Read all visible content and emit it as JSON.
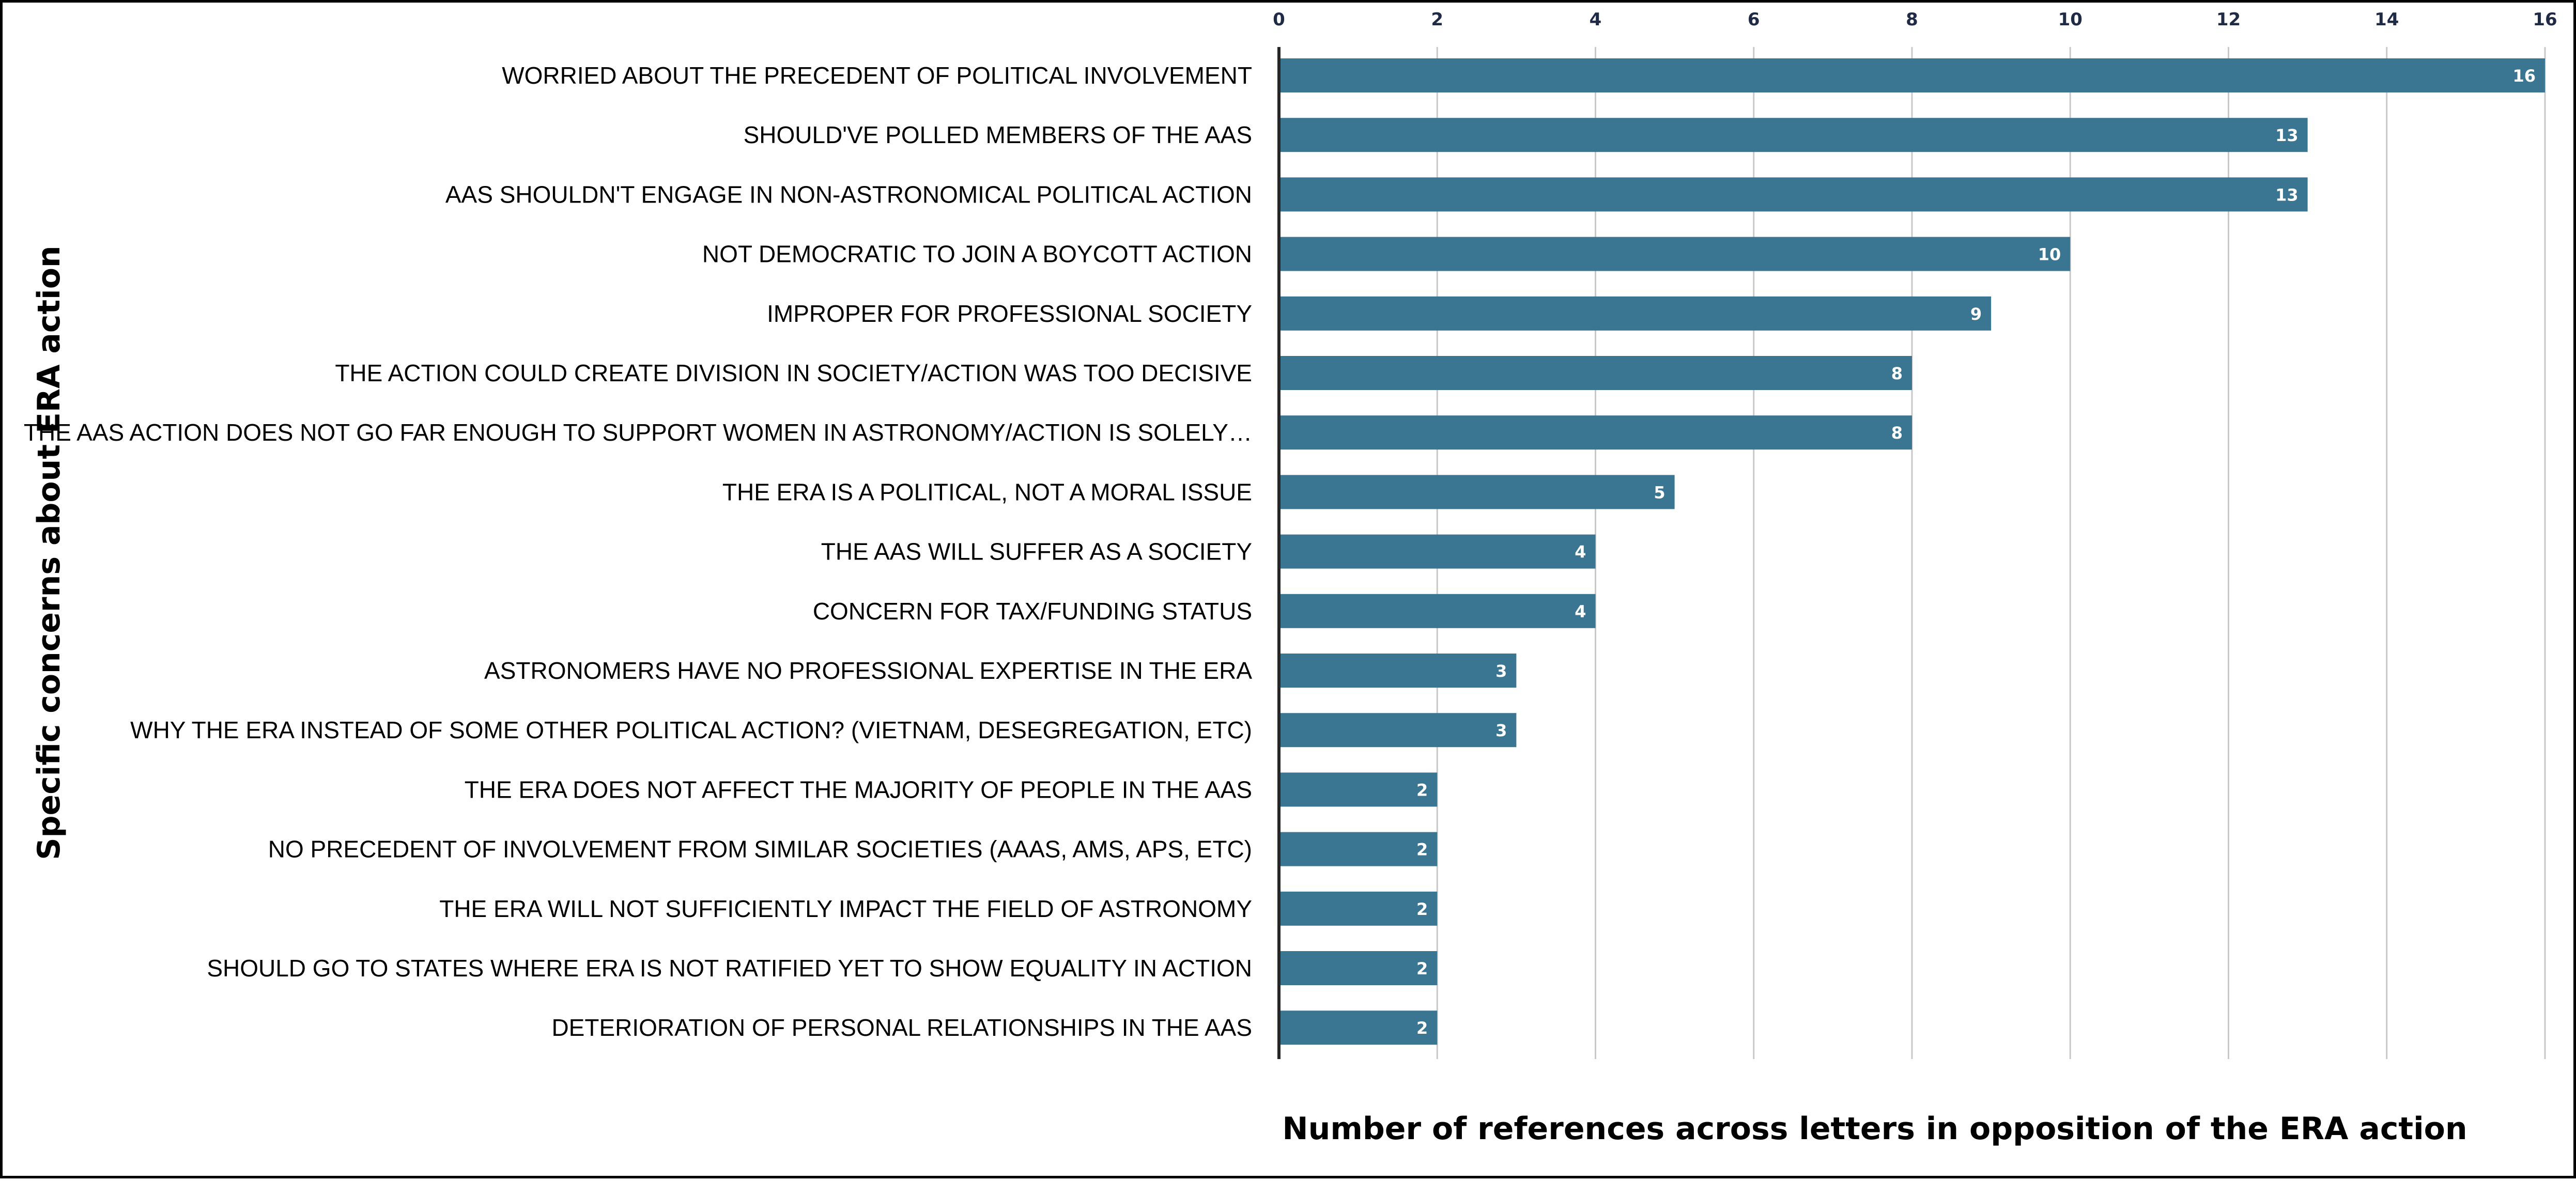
{
  "chart_data": {
    "type": "bar",
    "orientation": "horizontal",
    "title": "",
    "xlabel": "Number of references across letters in opposition of the ERA action",
    "ylabel": "Specific concerns about ERA action",
    "xlim": [
      0,
      16
    ],
    "x_ticks": [
      0,
      2,
      4,
      6,
      8,
      10,
      12,
      14,
      16
    ],
    "x_axis_position": "top",
    "grid": "vertical",
    "legend": "none",
    "bar_color": "#3a7592",
    "categories": [
      "WORRIED ABOUT THE PRECEDENT OF POLITICAL INVOLVEMENT",
      "SHOULD'VE POLLED MEMBERS OF THE AAS",
      "AAS SHOULDN'T ENGAGE IN NON-ASTRONOMICAL POLITICAL ACTION",
      "NOT DEMOCRATIC TO JOIN A BOYCOTT ACTION",
      "IMPROPER FOR PROFESSIONAL SOCIETY",
      "THE ACTION COULD CREATE DIVISION IN SOCIETY/ACTION WAS TOO DECISIVE",
      "THE AAS ACTION DOES NOT GO FAR ENOUGH TO SUPPORT WOMEN IN ASTRONOMY/ACTION IS SOLELY…",
      "THE ERA IS A POLITICAL, NOT A MORAL ISSUE",
      "THE AAS WILL SUFFER AS A SOCIETY",
      "CONCERN FOR TAX/FUNDING STATUS",
      "ASTRONOMERS HAVE NO PROFESSIONAL EXPERTISE IN THE ERA",
      "WHY THE ERA INSTEAD OF SOME OTHER POLITICAL ACTION? (VIETNAM, DESEGREGATION, ETC)",
      "THE ERA DOES NOT AFFECT THE MAJORITY OF PEOPLE IN THE AAS",
      "NO PRECEDENT OF INVOLVEMENT FROM SIMILAR SOCIETIES (AAAS, AMS, APS, ETC)",
      "THE ERA WILL NOT SUFFICIENTLY IMPACT THE FIELD OF ASTRONOMY",
      "SHOULD GO TO STATES WHERE ERA IS NOT RATIFIED YET TO SHOW EQUALITY IN ACTION",
      "DETERIORATION OF PERSONAL RELATIONSHIPS IN THE AAS"
    ],
    "values": [
      16,
      13,
      13,
      10,
      9,
      8,
      8,
      5,
      4,
      4,
      3,
      3,
      2,
      2,
      2,
      2,
      2
    ]
  }
}
